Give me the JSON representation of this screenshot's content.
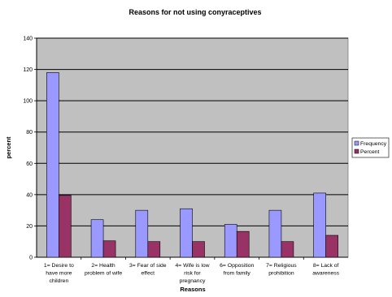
{
  "chart_data": {
    "type": "bar",
    "title": "Reasons for not using conyraceptives",
    "xlabel": "Reasons",
    "ylabel": "percent",
    "ylim": [
      0,
      140
    ],
    "yticks": [
      0,
      20,
      40,
      60,
      80,
      100,
      120,
      140
    ],
    "grid": true,
    "legend_position": "right",
    "categories": [
      [
        "1= Desire to",
        "have more",
        "children"
      ],
      [
        "2= Health",
        "problem of wife"
      ],
      [
        "3= Fear of side",
        "effect"
      ],
      [
        "4= Wife is low",
        "risk for",
        "pregnancy"
      ],
      [
        "6= Opposition",
        "from family"
      ],
      [
        "7= Religious",
        "prohibition"
      ],
      [
        "8= Lack of",
        "awareness"
      ]
    ],
    "series": [
      {
        "name": "Frequency",
        "color": "#9999ff",
        "values": [
          118,
          24,
          30,
          31,
          21,
          30,
          41
        ]
      },
      {
        "name": "Percent",
        "color": "#993366",
        "values": [
          39.5,
          10.5,
          10,
          10,
          16.5,
          10,
          14
        ]
      }
    ],
    "plot_background": "#c0c0c0"
  }
}
